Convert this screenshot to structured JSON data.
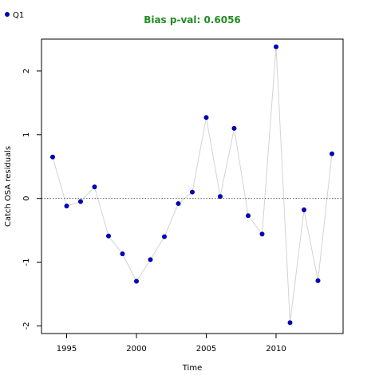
{
  "colors": {
    "title": "#228B22",
    "point_fill": "#0000CD",
    "point_stroke": "#00008B",
    "line": "#d3d3d3",
    "zero_line": "#555555",
    "frame": "#000000"
  },
  "legend": {
    "label": "Q1",
    "position": "top-left"
  },
  "chart_data": {
    "type": "line",
    "title": "Bias p-val: 0.6056",
    "xlabel": "Time",
    "ylabel": "Catch OSA residuals",
    "xlim": [
      1993.2,
      2014.8
    ],
    "ylim": [
      -2.12,
      2.5
    ],
    "xticks": [
      1995,
      2000,
      2005,
      2010
    ],
    "xtick_labels": [
      "1995",
      "2000",
      "2005",
      "2010"
    ],
    "yticks": [
      -2,
      -1,
      0,
      1,
      2
    ],
    "ytick_labels": [
      "-2",
      "-1",
      "0",
      "1",
      "2"
    ],
    "reference_line": 0,
    "grid": false,
    "series": [
      {
        "name": "Q1",
        "x": [
          1994,
          1995,
          1996,
          1997,
          1998,
          1999,
          2000,
          2001,
          2002,
          2003,
          2004,
          2005,
          2006,
          2007,
          2008,
          2009,
          2010,
          2011,
          2012,
          2013,
          2014
        ],
        "y": [
          0.65,
          -0.12,
          -0.05,
          0.18,
          -0.59,
          -0.87,
          -1.3,
          -0.96,
          -0.6,
          -0.08,
          0.1,
          1.27,
          0.03,
          1.1,
          -0.27,
          -0.56,
          2.38,
          -1.95,
          -0.18,
          -1.29,
          0.7
        ]
      }
    ]
  }
}
